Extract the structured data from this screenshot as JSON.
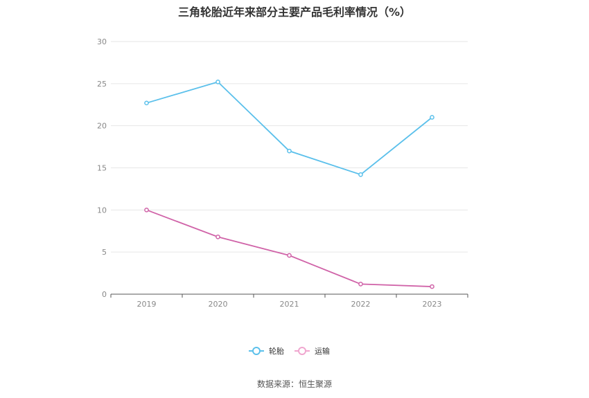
{
  "chart_data": {
    "type": "line",
    "title": "三角轮胎近年来部分主要产品毛利率情况（%）",
    "categories": [
      "2019",
      "2020",
      "2021",
      "2022",
      "2023"
    ],
    "ylim": [
      0,
      30
    ],
    "yticks": [
      "0",
      "5",
      "10",
      "15",
      "20",
      "25",
      "30"
    ],
    "grid": true,
    "legend_position": "bottom-center",
    "series": [
      {
        "name": "轮胎",
        "color": "#5bc0eb",
        "values": [
          22.7,
          25.2,
          17.0,
          14.2,
          21.0
        ]
      },
      {
        "name": "运输",
        "color": "#d063a8",
        "legend_color": "#f0a6cf",
        "values": [
          10.0,
          6.8,
          4.6,
          1.2,
          0.9
        ]
      }
    ]
  },
  "source_note": "数据来源：恒生聚源"
}
